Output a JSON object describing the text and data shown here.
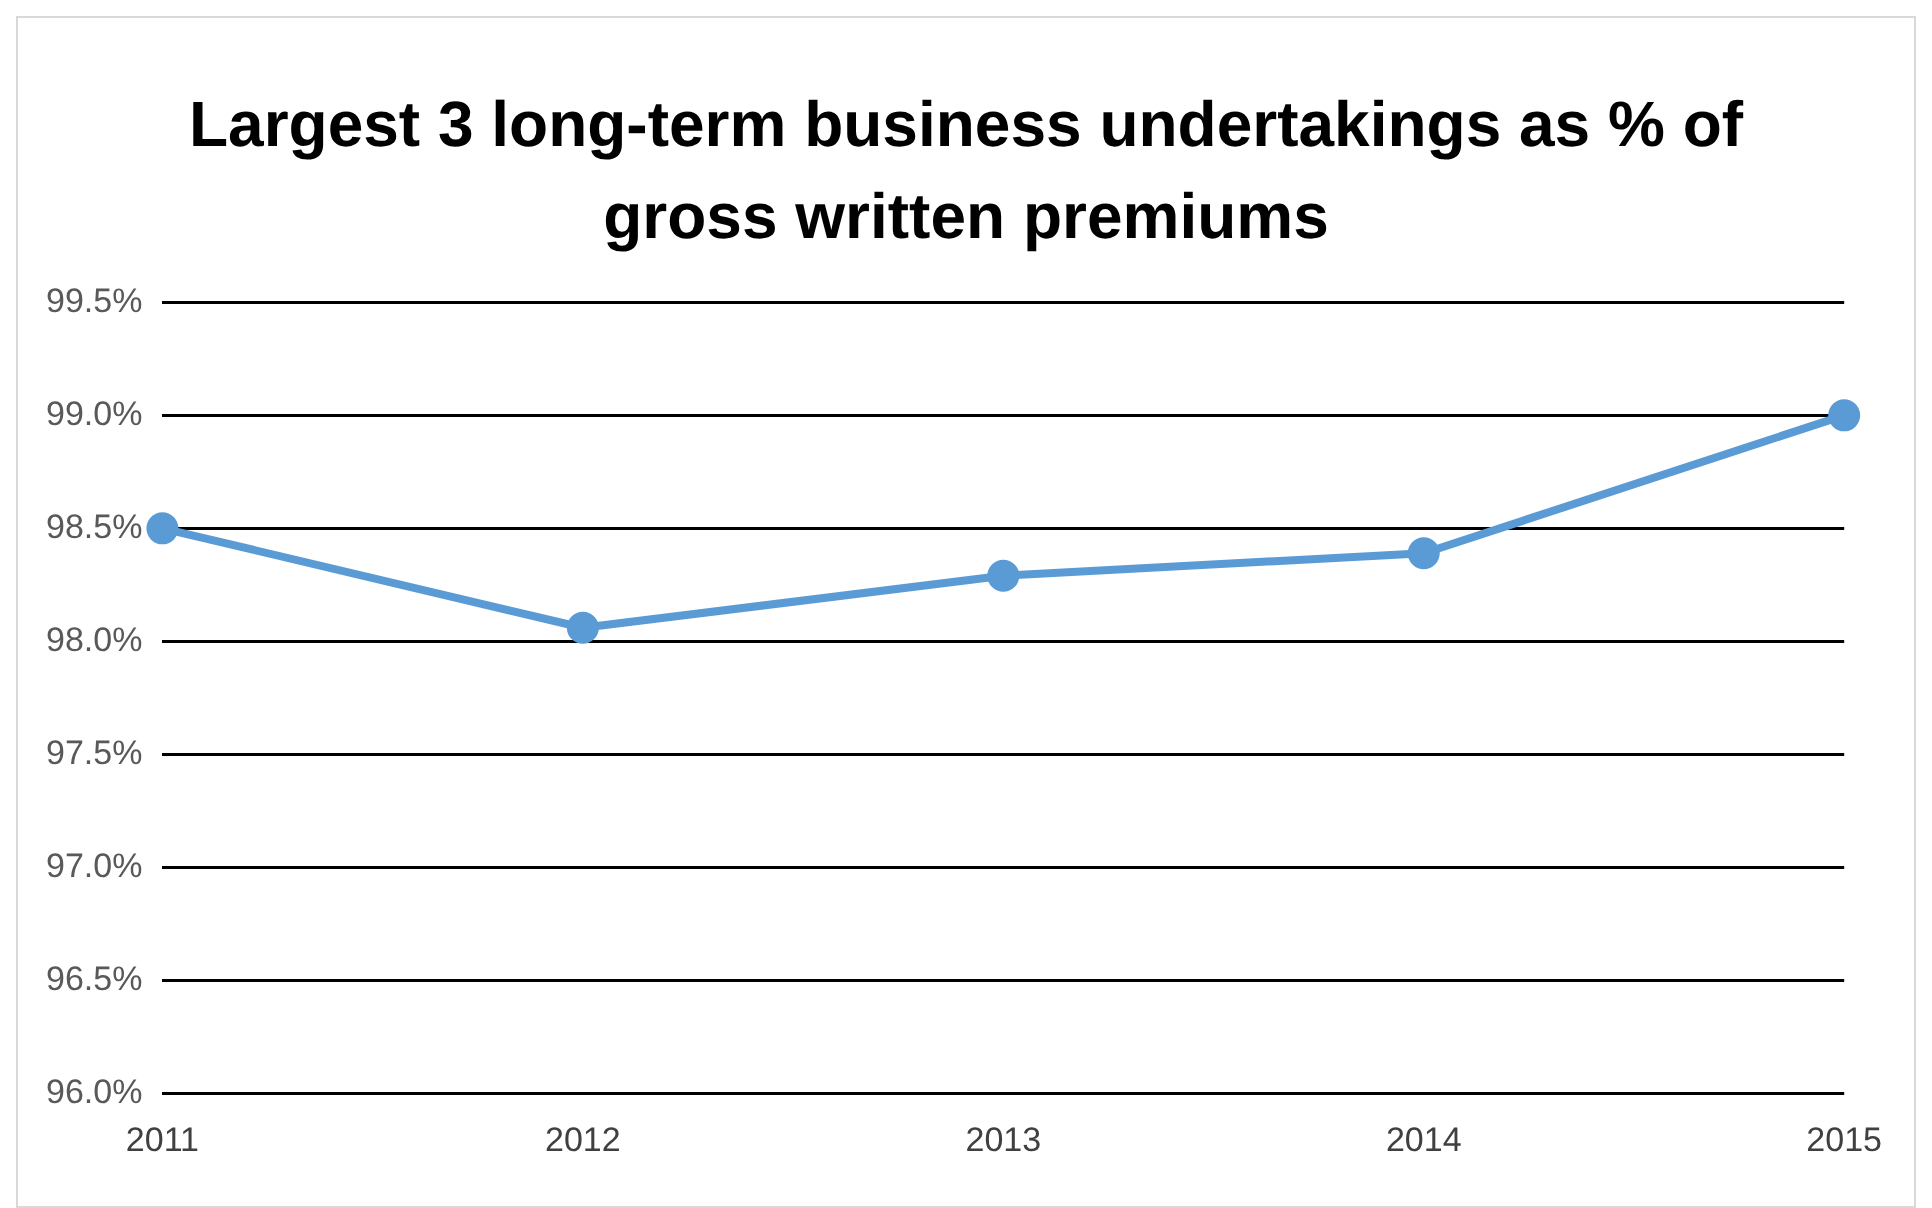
{
  "chart_data": {
    "type": "line",
    "title": "Largest 3 long-term business undertakings as % of gross written premiums",
    "categories": [
      "2011",
      "2012",
      "2013",
      "2014",
      "2015"
    ],
    "series": [
      {
        "color": "#5b9bd5",
        "values": [
          98.5,
          98.06,
          98.29,
          98.39,
          99.0
        ]
      }
    ],
    "ylim": [
      96,
      99.5
    ],
    "yticks": [
      {
        "value": 96,
        "label": "96.0%"
      },
      {
        "value": 96.5,
        "label": "96.5%"
      },
      {
        "value": 97,
        "label": "97.0%"
      },
      {
        "value": 97.5,
        "label": "97.5%"
      },
      {
        "value": 98,
        "label": "98.0%"
      },
      {
        "value": 98.5,
        "label": "98.5%"
      },
      {
        "value": 99,
        "label": "99.0%"
      },
      {
        "value": 99.5,
        "label": "99.5%"
      }
    ],
    "grid": "y",
    "legend": false,
    "marker": "circle",
    "line_style": "solid"
  }
}
